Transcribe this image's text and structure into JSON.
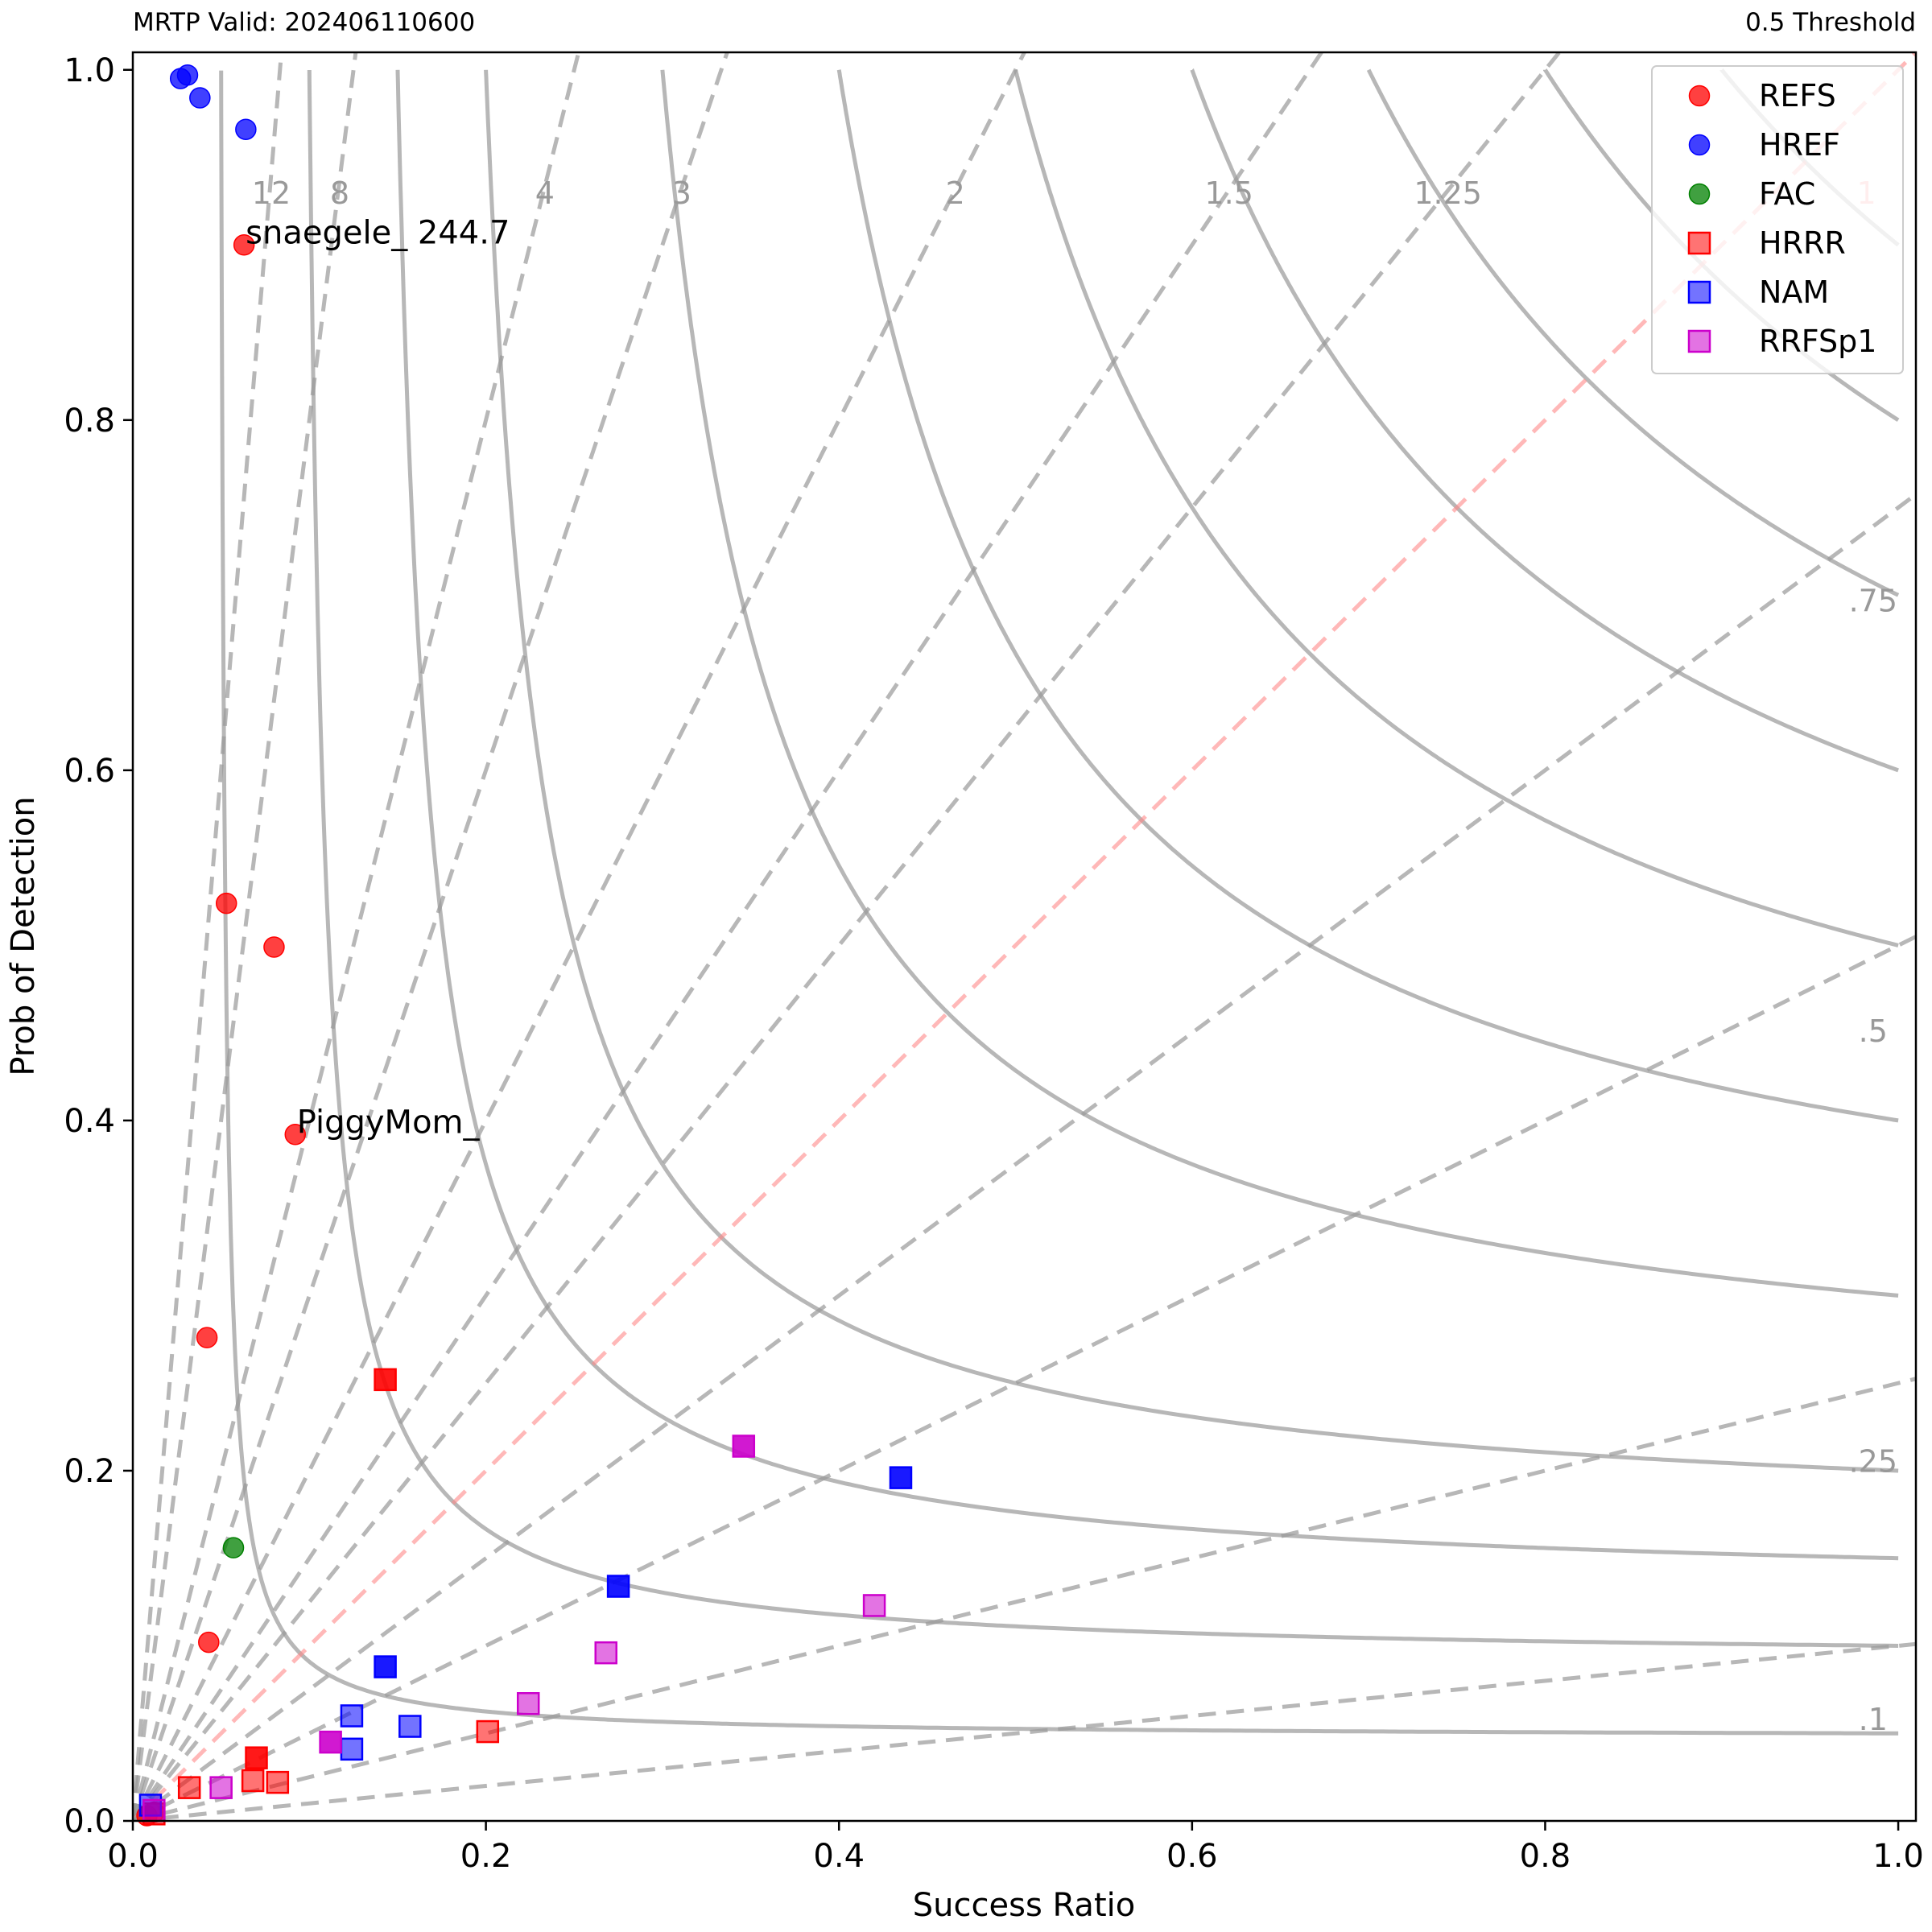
{
  "header": {
    "left": "MRTP Valid: 202406110600",
    "right": "0.5 Threshold"
  },
  "chart_data": {
    "type": "scatter",
    "title": "",
    "xlabel": "Success Ratio",
    "ylabel": "Prob of Detection",
    "xlim": [
      0,
      1.01
    ],
    "ylim": [
      0,
      1.01
    ],
    "x_ticks": [
      "0.0",
      "0.2",
      "0.4",
      "0.6",
      "0.8",
      "1.0"
    ],
    "y_ticks": [
      "0.0",
      "0.2",
      "0.4",
      "0.6",
      "0.8",
      "1.0"
    ],
    "grid": false,
    "legend_position": "top-right",
    "bias_lines": [
      {
        "value": 12,
        "label": "12"
      },
      {
        "value": 8,
        "label": "8"
      },
      {
        "value": 4,
        "label": "4"
      },
      {
        "value": 3,
        "label": "3"
      },
      {
        "value": 2,
        "label": "2"
      },
      {
        "value": 1.5,
        "label": "1.5"
      },
      {
        "value": 1.25,
        "label": "1.25"
      },
      {
        "value": 1,
        "label": "1"
      },
      {
        "value": 0.75,
        "label": ".75"
      },
      {
        "value": 0.5,
        "label": ".5"
      },
      {
        "value": 0.25,
        "label": ".25"
      },
      {
        "value": 0.1,
        "label": ".1"
      }
    ],
    "csi_contours": [
      0.05,
      0.1,
      0.15,
      0.2,
      0.3,
      0.4,
      0.5,
      0.6,
      0.7,
      0.8,
      0.9
    ],
    "series": [
      {
        "name": "REFS",
        "marker": "circle",
        "color": "#ff0000",
        "opacity": 0.75,
        "points": [
          {
            "x": 0.063,
            "y": 0.9,
            "label": "snaegele_ 244.7"
          },
          {
            "x": 0.053,
            "y": 0.524
          },
          {
            "x": 0.08,
            "y": 0.499
          },
          {
            "x": 0.092,
            "y": 0.392,
            "label": "PiggyMom_"
          },
          {
            "x": 0.042,
            "y": 0.276
          },
          {
            "x": 0.043,
            "y": 0.102
          },
          {
            "x": 0.012,
            "y": 0.005
          },
          {
            "x": 0.008,
            "y": 0.003
          }
        ]
      },
      {
        "name": "HREF",
        "marker": "circle",
        "color": "#0000ff",
        "opacity": 0.75,
        "points": [
          {
            "x": 0.027,
            "y": 0.995
          },
          {
            "x": 0.031,
            "y": 0.997
          },
          {
            "x": 0.038,
            "y": 0.984
          },
          {
            "x": 0.064,
            "y": 0.966
          }
        ]
      },
      {
        "name": "FAC",
        "marker": "circle",
        "color": "#008000",
        "opacity": 0.75,
        "points": [
          {
            "x": 0.057,
            "y": 0.156
          }
        ]
      },
      {
        "name": "HRRR",
        "marker": "square",
        "color": "#ff0000",
        "opacity": 0.55,
        "points": [
          {
            "x": 0.143,
            "y": 0.252,
            "solid": true
          },
          {
            "x": 0.07,
            "y": 0.036,
            "solid": true
          },
          {
            "x": 0.032,
            "y": 0.019
          },
          {
            "x": 0.068,
            "y": 0.023
          },
          {
            "x": 0.082,
            "y": 0.022
          },
          {
            "x": 0.201,
            "y": 0.051
          },
          {
            "x": 0.012,
            "y": 0.004
          }
        ]
      },
      {
        "name": "NAM",
        "marker": "square",
        "color": "#0000ff",
        "opacity": 0.55,
        "points": [
          {
            "x": 0.435,
            "y": 0.196,
            "solid": true
          },
          {
            "x": 0.275,
            "y": 0.134,
            "solid": true
          },
          {
            "x": 0.143,
            "y": 0.088,
            "solid": true
          },
          {
            "x": 0.124,
            "y": 0.06
          },
          {
            "x": 0.157,
            "y": 0.054
          },
          {
            "x": 0.124,
            "y": 0.041
          },
          {
            "x": 0.01,
            "y": 0.009
          }
        ]
      },
      {
        "name": "RRFSp1",
        "marker": "square",
        "color": "#cc00cc",
        "opacity": 0.55,
        "points": [
          {
            "x": 0.346,
            "y": 0.214,
            "solid": true
          },
          {
            "x": 0.42,
            "y": 0.123
          },
          {
            "x": 0.268,
            "y": 0.096
          },
          {
            "x": 0.224,
            "y": 0.067
          },
          {
            "x": 0.112,
            "y": 0.045,
            "solid": true
          },
          {
            "x": 0.05,
            "y": 0.019
          },
          {
            "x": 0.012,
            "y": 0.006
          }
        ]
      }
    ]
  }
}
